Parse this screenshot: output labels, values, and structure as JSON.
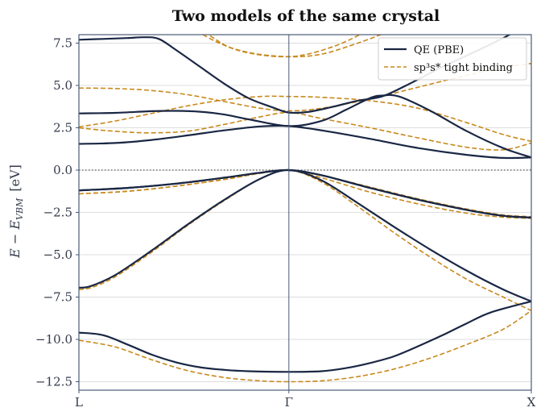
{
  "chart_data": {
    "type": "line",
    "title": "Two models of the same crystal",
    "ylabel": "E − E_VBM  [eV]",
    "ylabel_main": "E − E",
    "ylabel_sub": "VBM",
    "ylabel_unit": "[eV]",
    "ylim": [
      -13.0,
      8.0
    ],
    "yticks": [
      7.5,
      5.0,
      2.5,
      0.0,
      -2.5,
      -5.0,
      -7.5,
      -10.0,
      -12.5
    ],
    "ytick_labels": [
      "7.5",
      "5.0",
      "2.5",
      "0.0",
      "−2.5",
      "−5.0",
      "−7.5",
      "−10.0",
      "−12.5"
    ],
    "xticks": [
      {
        "label": "L",
        "k": 0.0
      },
      {
        "label": "Γ",
        "k": 0.866
      },
      {
        "label": "X",
        "k": 1.866
      }
    ],
    "xlim": [
      0.0,
      1.866
    ],
    "fermi_line": 0.0,
    "grid": "horizontal",
    "legend_position": "top-right",
    "colors": {
      "qe": "#1a2744",
      "tb": "#c9891c",
      "axis": "#4a5a78",
      "grid": "#dddddd",
      "fermi": "#555555"
    },
    "series": [
      {
        "name": "QE (PBE)",
        "style": "solid",
        "bands": [
          [
            [
              0.0,
              -9.6
            ],
            [
              0.1,
              -9.75
            ],
            [
              0.2,
              -10.3
            ],
            [
              0.3,
              -10.9
            ],
            [
              0.4,
              -11.35
            ],
            [
              0.5,
              -11.65
            ],
            [
              0.6,
              -11.8
            ],
            [
              0.7,
              -11.88
            ],
            [
              0.866,
              -11.92
            ],
            [
              1.0,
              -11.88
            ],
            [
              1.1,
              -11.7
            ],
            [
              1.2,
              -11.4
            ],
            [
              1.3,
              -11.0
            ],
            [
              1.4,
              -10.4
            ],
            [
              1.5,
              -9.75
            ],
            [
              1.6,
              -9.05
            ],
            [
              1.7,
              -8.4
            ],
            [
              1.866,
              -7.75
            ]
          ],
          [
            [
              0.0,
              -6.95
            ],
            [
              0.05,
              -6.85
            ],
            [
              0.15,
              -6.2
            ],
            [
              0.3,
              -4.75
            ],
            [
              0.45,
              -3.2
            ],
            [
              0.6,
              -1.75
            ],
            [
              0.75,
              -0.5
            ],
            [
              0.866,
              0.0
            ],
            [
              1.0,
              -0.6
            ],
            [
              1.15,
              -1.95
            ],
            [
              1.3,
              -3.35
            ],
            [
              1.45,
              -4.7
            ],
            [
              1.6,
              -5.95
            ],
            [
              1.75,
              -7.05
            ],
            [
              1.866,
              -7.75
            ]
          ],
          [
            [
              0.0,
              -1.2
            ],
            [
              0.2,
              -1.05
            ],
            [
              0.4,
              -0.8
            ],
            [
              0.6,
              -0.45
            ],
            [
              0.75,
              -0.15
            ],
            [
              0.866,
              0.0
            ],
            [
              1.0,
              -0.3
            ],
            [
              1.2,
              -1.05
            ],
            [
              1.4,
              -1.75
            ],
            [
              1.6,
              -2.35
            ],
            [
              1.75,
              -2.7
            ],
            [
              1.866,
              -2.8
            ]
          ],
          [
            [
              0.0,
              -1.2
            ],
            [
              0.2,
              -1.05
            ],
            [
              0.4,
              -0.8
            ],
            [
              0.6,
              -0.45
            ],
            [
              0.75,
              -0.15
            ],
            [
              0.866,
              0.0
            ],
            [
              1.0,
              -0.3
            ],
            [
              1.2,
              -1.05
            ],
            [
              1.4,
              -1.75
            ],
            [
              1.6,
              -2.35
            ],
            [
              1.75,
              -2.7
            ],
            [
              1.866,
              -2.8
            ]
          ],
          [
            [
              0.0,
              1.55
            ],
            [
              0.15,
              1.6
            ],
            [
              0.3,
              1.78
            ],
            [
              0.45,
              2.05
            ],
            [
              0.6,
              2.35
            ],
            [
              0.75,
              2.58
            ],
            [
              0.866,
              2.6
            ],
            [
              1.0,
              2.35
            ],
            [
              1.2,
              1.85
            ],
            [
              1.4,
              1.3
            ],
            [
              1.6,
              0.9
            ],
            [
              1.75,
              0.72
            ],
            [
              1.866,
              0.75
            ]
          ],
          [
            [
              0.0,
              3.35
            ],
            [
              0.15,
              3.38
            ],
            [
              0.3,
              3.48
            ],
            [
              0.4,
              3.5
            ],
            [
              0.5,
              3.45
            ],
            [
              0.6,
              3.28
            ],
            [
              0.7,
              3.0
            ],
            [
              0.866,
              2.6
            ],
            [
              1.0,
              2.9
            ],
            [
              1.1,
              3.55
            ],
            [
              1.2,
              4.25
            ],
            [
              1.25,
              4.4
            ],
            [
              1.32,
              4.35
            ],
            [
              1.45,
              3.5
            ],
            [
              1.6,
              2.3
            ],
            [
              1.75,
              1.3
            ],
            [
              1.866,
              0.75
            ]
          ],
          [
            [
              0.0,
              7.7
            ],
            [
              0.1,
              7.75
            ],
            [
              0.2,
              7.8
            ],
            [
              0.27,
              7.85
            ],
            [
              0.33,
              7.75
            ],
            [
              0.4,
              7.1
            ],
            [
              0.5,
              6.1
            ],
            [
              0.6,
              5.1
            ],
            [
              0.7,
              4.25
            ],
            [
              0.8,
              3.7
            ],
            [
              0.866,
              3.4
            ],
            [
              0.95,
              3.45
            ],
            [
              1.05,
              3.75
            ],
            [
              1.15,
              4.1
            ],
            [
              1.25,
              4.35
            ],
            [
              1.35,
              5.0
            ],
            [
              1.5,
              6.1
            ],
            [
              1.65,
              7.1
            ],
            [
              1.75,
              7.8
            ],
            [
              1.8,
              8.2
            ]
          ]
        ]
      },
      {
        "name": "sp³s* tight binding",
        "style": "dashed",
        "bands": [
          [
            [
              0.0,
              -10.05
            ],
            [
              0.15,
              -10.45
            ],
            [
              0.3,
              -11.2
            ],
            [
              0.45,
              -11.85
            ],
            [
              0.6,
              -12.25
            ],
            [
              0.75,
              -12.45
            ],
            [
              0.866,
              -12.5
            ],
            [
              1.0,
              -12.45
            ],
            [
              1.15,
              -12.2
            ],
            [
              1.3,
              -11.75
            ],
            [
              1.45,
              -11.1
            ],
            [
              1.6,
              -10.3
            ],
            [
              1.75,
              -9.4
            ],
            [
              1.866,
              -8.3
            ]
          ],
          [
            [
              0.0,
              -7.05
            ],
            [
              0.05,
              -6.95
            ],
            [
              0.15,
              -6.3
            ],
            [
              0.3,
              -4.85
            ],
            [
              0.45,
              -3.25
            ],
            [
              0.6,
              -1.8
            ],
            [
              0.75,
              -0.5
            ],
            [
              0.866,
              0.0
            ],
            [
              1.0,
              -0.7
            ],
            [
              1.15,
              -2.15
            ],
            [
              1.3,
              -3.7
            ],
            [
              1.45,
              -5.15
            ],
            [
              1.6,
              -6.45
            ],
            [
              1.75,
              -7.5
            ],
            [
              1.866,
              -8.3
            ]
          ],
          [
            [
              0.0,
              -1.4
            ],
            [
              0.2,
              -1.25
            ],
            [
              0.4,
              -0.95
            ],
            [
              0.6,
              -0.55
            ],
            [
              0.75,
              -0.18
            ],
            [
              0.866,
              0.0
            ],
            [
              1.0,
              -0.3
            ],
            [
              1.2,
              -1.0
            ],
            [
              1.4,
              -1.7
            ],
            [
              1.6,
              -2.3
            ],
            [
              1.75,
              -2.65
            ],
            [
              1.866,
              -2.75
            ]
          ],
          [
            [
              0.0,
              -1.4
            ],
            [
              0.2,
              -1.25
            ],
            [
              0.4,
              -0.95
            ],
            [
              0.6,
              -0.55
            ],
            [
              0.75,
              -0.18
            ],
            [
              0.866,
              0.0
            ],
            [
              1.0,
              -0.45
            ],
            [
              1.2,
              -1.3
            ],
            [
              1.4,
              -2.0
            ],
            [
              1.6,
              -2.55
            ],
            [
              1.75,
              -2.78
            ],
            [
              1.866,
              -2.85
            ]
          ],
          [
            [
              0.0,
              2.5
            ],
            [
              0.1,
              2.35
            ],
            [
              0.2,
              2.25
            ],
            [
              0.3,
              2.2
            ],
            [
              0.45,
              2.3
            ],
            [
              0.6,
              2.7
            ],
            [
              0.75,
              3.15
            ],
            [
              0.866,
              3.4
            ],
            [
              1.0,
              3.05
            ],
            [
              1.2,
              2.5
            ],
            [
              1.4,
              1.9
            ],
            [
              1.6,
              1.35
            ],
            [
              1.75,
              1.2
            ],
            [
              1.866,
              1.6
            ]
          ],
          [
            [
              0.0,
              2.55
            ],
            [
              0.15,
              2.9
            ],
            [
              0.3,
              3.35
            ],
            [
              0.45,
              3.8
            ],
            [
              0.6,
              4.15
            ],
            [
              0.75,
              4.35
            ],
            [
              0.866,
              4.35
            ],
            [
              1.0,
              4.3
            ],
            [
              1.2,
              4.1
            ],
            [
              1.4,
              3.65
            ],
            [
              1.6,
              2.8
            ],
            [
              1.75,
              2.1
            ],
            [
              1.866,
              1.7
            ]
          ],
          [
            [
              0.0,
              4.85
            ],
            [
              0.15,
              4.82
            ],
            [
              0.3,
              4.7
            ],
            [
              0.45,
              4.45
            ],
            [
              0.6,
              4.05
            ],
            [
              0.75,
              3.65
            ],
            [
              0.866,
              3.5
            ],
            [
              1.0,
              3.65
            ],
            [
              1.2,
              4.2
            ],
            [
              1.4,
              4.9
            ],
            [
              1.6,
              5.6
            ],
            [
              1.75,
              6.05
            ],
            [
              1.866,
              6.3
            ]
          ],
          [
            [
              0.0,
              11.5
            ],
            [
              0.3,
              9.8
            ],
            [
              0.55,
              7.7
            ],
            [
              0.7,
              6.95
            ],
            [
              0.866,
              6.7
            ],
            [
              1.0,
              6.85
            ],
            [
              1.15,
              7.5
            ],
            [
              1.3,
              8.3
            ]
          ],
          [
            [
              0.0,
              11.5
            ],
            [
              0.3,
              9.9
            ],
            [
              0.5,
              8.3
            ],
            [
              0.65,
              7.1
            ],
            [
              0.866,
              6.7
            ],
            [
              1.05,
              7.3
            ],
            [
              1.2,
              8.3
            ]
          ]
        ]
      }
    ]
  }
}
